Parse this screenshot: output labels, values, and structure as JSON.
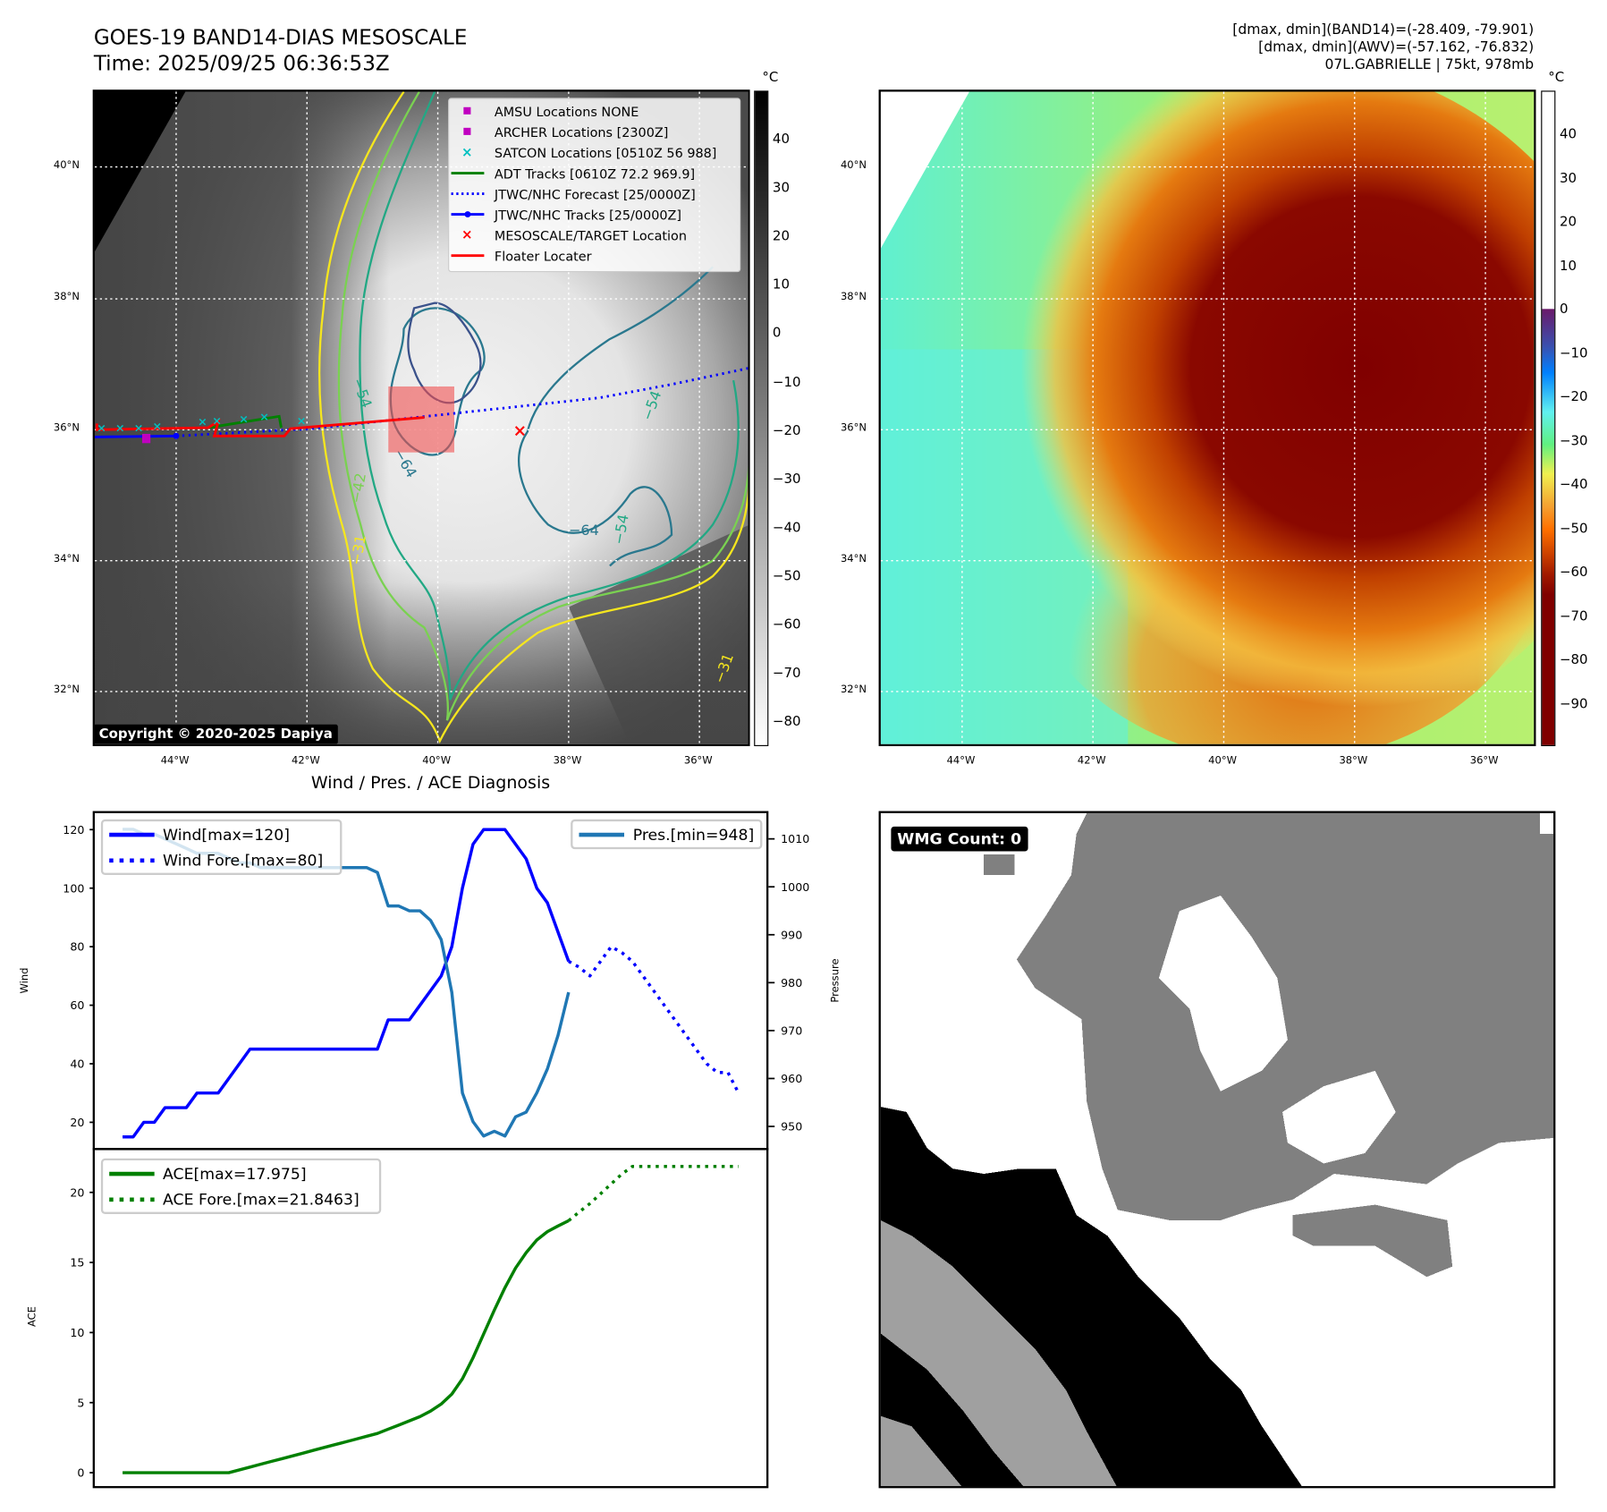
{
  "header": {
    "title": "GOES-19 BAND14-DIAS MESOSCALE",
    "time": "Time: 2025/09/25 06:36:53Z",
    "stats_band14": "[dmax, dmin](BAND14)=(-28.409, -79.901)",
    "stats_awv": "[dmax, dmin](AWV)=(-57.162, -76.832)",
    "storm_info": "07L.GABRIELLE | 75kt, 978mb"
  },
  "maps": {
    "lat_labels": [
      "40°N",
      "38°N",
      "36°N",
      "34°N",
      "32°N"
    ],
    "lon_labels": [
      "44°W",
      "42°W",
      "40°W",
      "38°W",
      "36°W"
    ],
    "unit": "°C",
    "left_colorbar_ticks": [
      "40",
      "30",
      "20",
      "10",
      "0",
      "−10",
      "−20",
      "−30",
      "−40",
      "−50",
      "−60",
      "−70",
      "−80"
    ],
    "right_colorbar_ticks": [
      "40",
      "30",
      "20",
      "10",
      "0",
      "−10",
      "−20",
      "−30",
      "−40",
      "−50",
      "−60",
      "−70",
      "−80",
      "−90"
    ],
    "legend": [
      {
        "label": "AMSU Locations NONE",
        "icon": "square-marker",
        "color": "#c000c0"
      },
      {
        "label": "ARCHER Locations [2300Z]",
        "icon": "square-marker",
        "color": "#c000c0"
      },
      {
        "label": "SATCON Locations [0510Z 56 988]",
        "icon": "x-marker",
        "color": "#00c0c0"
      },
      {
        "label": "ADT Tracks [0610Z 72.2 969.9]",
        "icon": "solid-line",
        "color": "#008000"
      },
      {
        "label": "JTWC/NHC Forecast [25/0000Z]",
        "icon": "dotted-line",
        "color": "#0000ff"
      },
      {
        "label": "JTWC/NHC Tracks [25/0000Z]",
        "icon": "line-dot",
        "color": "#0000ff"
      },
      {
        "label": "MESOSCALE/TARGET Location",
        "icon": "x-marker",
        "color": "#ff0000"
      },
      {
        "label": "Floater Locater",
        "icon": "solid-line",
        "color": "#ff0000"
      }
    ],
    "contour_labels": [
      "−64",
      "−54",
      "−64",
      "−54",
      "−42",
      "−31",
      "−31",
      "−54"
    ],
    "copyright": "Copyright © 2020-2025 Dapiya"
  },
  "wmg": {
    "label": "WMG Count: 0"
  },
  "chart_data": {
    "type": "line",
    "title": "Wind / Pres. / ACE Diagnosis",
    "x": "time step index",
    "xlim": [
      -2.6,
      61
    ],
    "wind_panel": {
      "ylabel": "Wind",
      "ylim": [
        12,
        126
      ],
      "yticks": [
        20,
        40,
        60,
        80,
        100,
        120
      ],
      "series": [
        {
          "name": "Wind[max=120]",
          "start": 0,
          "style": "solid",
          "color": "#0000ff",
          "values": [
            15,
            15,
            20,
            20,
            25,
            25,
            25,
            30,
            30,
            30,
            35,
            40,
            45,
            45,
            45,
            45,
            45,
            45,
            45,
            45,
            45,
            45,
            45,
            45,
            45,
            55,
            55,
            55,
            60,
            65,
            70,
            80,
            100,
            115,
            120,
            120,
            120,
            115,
            110,
            100,
            95,
            85,
            75
          ]
        },
        {
          "name": "Wind Fore.[max=80]",
          "start": 42,
          "style": "dotted",
          "color": "#0000ff",
          "values": [
            75,
            73,
            70,
            75,
            80,
            78,
            75,
            70,
            65,
            60,
            55,
            50,
            45,
            40,
            37,
            37,
            30
          ]
        }
      ]
    },
    "pressure_axis": {
      "ylabel": "Pressure",
      "yticks": [
        950,
        960,
        970,
        980,
        990,
        1000,
        1010
      ],
      "series": [
        {
          "name": "Pres.[min=948]",
          "start": 0,
          "style": "solid",
          "color": "#1f77b4",
          "values": [
            1012,
            1012,
            1011,
            1011,
            1010,
            1009,
            1008,
            1007,
            1007,
            1007,
            1006,
            1005,
            1005,
            1004,
            1004,
            1004,
            1004,
            1004,
            1004,
            1004,
            1004,
            1004,
            1004,
            1004,
            1003,
            996,
            996,
            995,
            995,
            993,
            989,
            978,
            957,
            951,
            948,
            949,
            948,
            952,
            953,
            957,
            962,
            969,
            978
          ]
        }
      ]
    },
    "ace_panel": {
      "ylabel": "ACE",
      "ylim": [
        -1.1,
        23
      ],
      "yticks": [
        0,
        5,
        10,
        15,
        20
      ],
      "series": [
        {
          "name": "ACE[max=17.975]",
          "start": 0,
          "style": "solid",
          "color": "#008000",
          "values": [
            0,
            0,
            0,
            0,
            0,
            0,
            0,
            0,
            0,
            0,
            0,
            0.2,
            0.4,
            0.6,
            0.8,
            1.0,
            1.2,
            1.4,
            1.6,
            1.8,
            2.0,
            2.2,
            2.4,
            2.6,
            2.8,
            3.1,
            3.4,
            3.7,
            4.0,
            4.4,
            4.9,
            5.6,
            6.7,
            8.2,
            9.9,
            11.6,
            13.2,
            14.6,
            15.7,
            16.6,
            17.2,
            17.6,
            17.975
          ]
        },
        {
          "name": "ACE Fore.[max=21.8463]",
          "start": 42,
          "style": "dotted",
          "color": "#008000",
          "values": [
            17.975,
            18.6,
            19.2,
            19.9,
            20.6,
            21.3,
            21.85,
            21.85,
            21.85,
            21.85,
            21.85,
            21.85,
            21.85,
            21.85,
            21.85,
            21.85,
            21.85
          ]
        }
      ]
    }
  }
}
